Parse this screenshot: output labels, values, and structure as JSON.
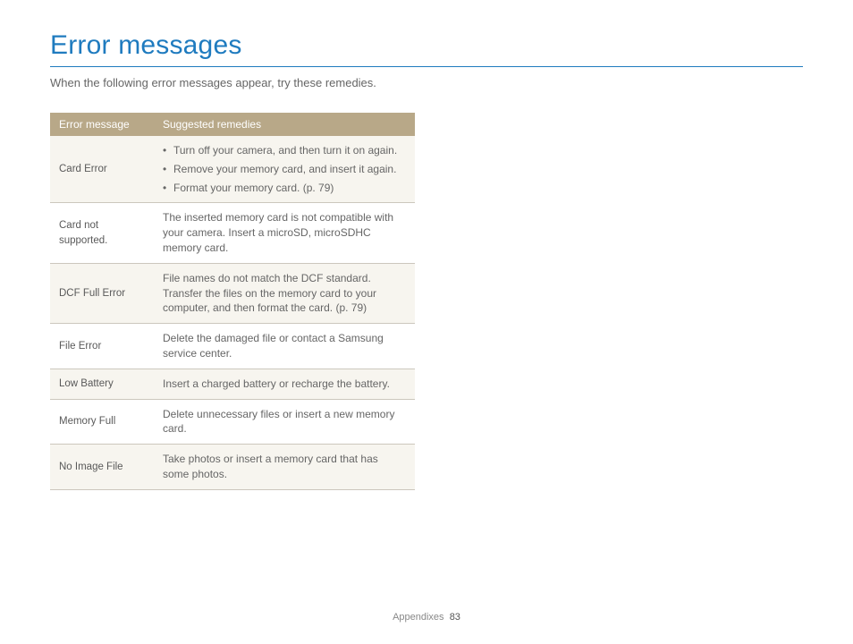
{
  "title": "Error messages",
  "intro": "When the following error messages appear, try these remedies.",
  "table": {
    "headers": [
      "Error message",
      "Suggested remedies"
    ],
    "rows": [
      {
        "error": "Card Error",
        "remedy_bullets": [
          "Turn off your camera, and then turn it on again.",
          "Remove your memory card, and insert it again.",
          "Format your memory card. (p. 79)"
        ]
      },
      {
        "error": "Card not supported.",
        "remedy": "The inserted memory card is not compatible with your camera. Insert a microSD, microSDHC memory card."
      },
      {
        "error": "DCF Full Error",
        "remedy": "File names do not match the DCF standard. Transfer the files on the memory card to your computer, and then format the card. (p. 79)"
      },
      {
        "error": "File Error",
        "remedy": "Delete the damaged file or contact a Samsung service center."
      },
      {
        "error": "Low Battery",
        "remedy": "Insert a charged battery or recharge the battery."
      },
      {
        "error": "Memory Full",
        "remedy": "Delete unnecessary files or insert a new memory card."
      },
      {
        "error": "No Image File",
        "remedy": "Take photos or insert a memory card that has some photos."
      }
    ]
  },
  "footer": {
    "section": "Appendixes",
    "page": "83"
  },
  "colors": {
    "title_color": "#1f7bbf",
    "header_bg": "#b8a888",
    "row_alt_bg": "#f7f5ef",
    "border_color": "#ccc7bd",
    "text_color": "#666666"
  }
}
